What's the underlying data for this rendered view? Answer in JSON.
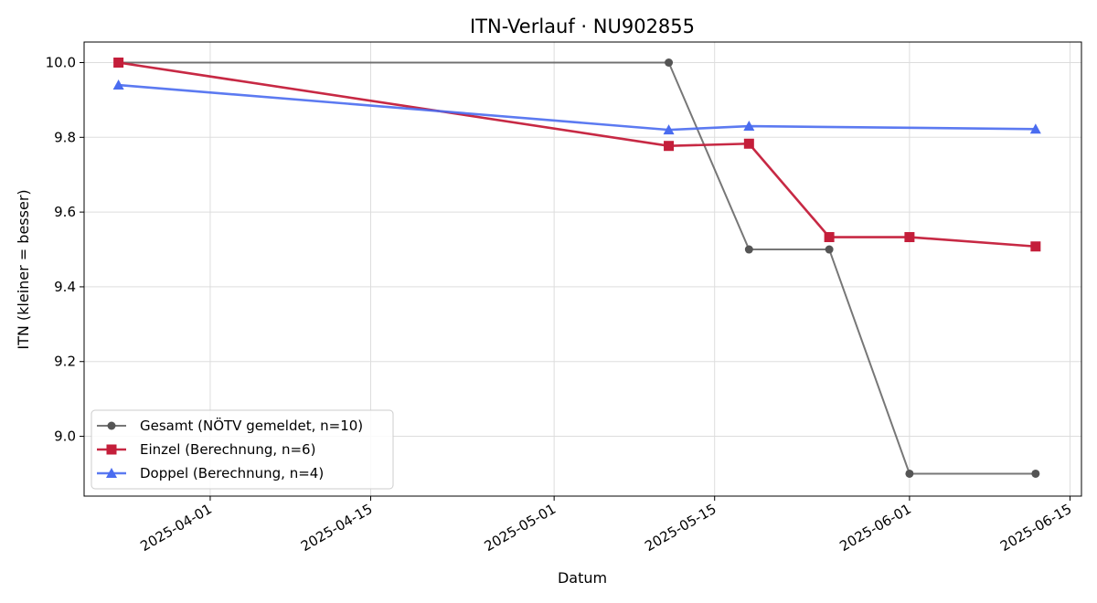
{
  "chart_data": {
    "type": "line",
    "title": "ITN-Verlauf · NU902855",
    "xlabel": "Datum",
    "ylabel": "ITN  (kleiner = besser)",
    "xlim": [
      "2025-03-21",
      "2025-06-16"
    ],
    "ylim": [
      8.84,
      10.055
    ],
    "grid": true,
    "legend_position": "lower-left",
    "x_ticks": [
      "2025-04-01",
      "2025-04-15",
      "2025-05-01",
      "2025-05-15",
      "2025-06-01",
      "2025-06-15"
    ],
    "y_ticks": [
      "9.0",
      "9.2",
      "9.4",
      "9.6",
      "9.8",
      "10.0"
    ],
    "series": [
      {
        "name": "Gesamt (NÖTV gemeldet, n=10)",
        "color": "#555555",
        "marker": "circle",
        "points": [
          {
            "x": "2025-03-24",
            "y": 10.0
          },
          {
            "x": "2025-05-11",
            "y": 10.0
          },
          {
            "x": "2025-05-18",
            "y": 9.5
          },
          {
            "x": "2025-05-25",
            "y": 9.5
          },
          {
            "x": "2025-06-01",
            "y": 8.9
          },
          {
            "x": "2025-06-12",
            "y": 8.9
          }
        ]
      },
      {
        "name": "Einzel (Berechnung, n=6)",
        "color": "#c41e3a",
        "marker": "square",
        "points": [
          {
            "x": "2025-03-24",
            "y": 10.0
          },
          {
            "x": "2025-05-11",
            "y": 9.777
          },
          {
            "x": "2025-05-18",
            "y": 9.783
          },
          {
            "x": "2025-05-25",
            "y": 9.533
          },
          {
            "x": "2025-06-01",
            "y": 9.533
          },
          {
            "x": "2025-06-12",
            "y": 9.508
          }
        ]
      },
      {
        "name": "Doppel (Berechnung, n=4)",
        "color": "#4a6cf0",
        "marker": "triangle",
        "points": [
          {
            "x": "2025-03-24",
            "y": 9.94
          },
          {
            "x": "2025-05-11",
            "y": 9.82
          },
          {
            "x": "2025-05-18",
            "y": 9.83
          },
          {
            "x": "2025-06-12",
            "y": 9.822
          }
        ]
      }
    ]
  }
}
